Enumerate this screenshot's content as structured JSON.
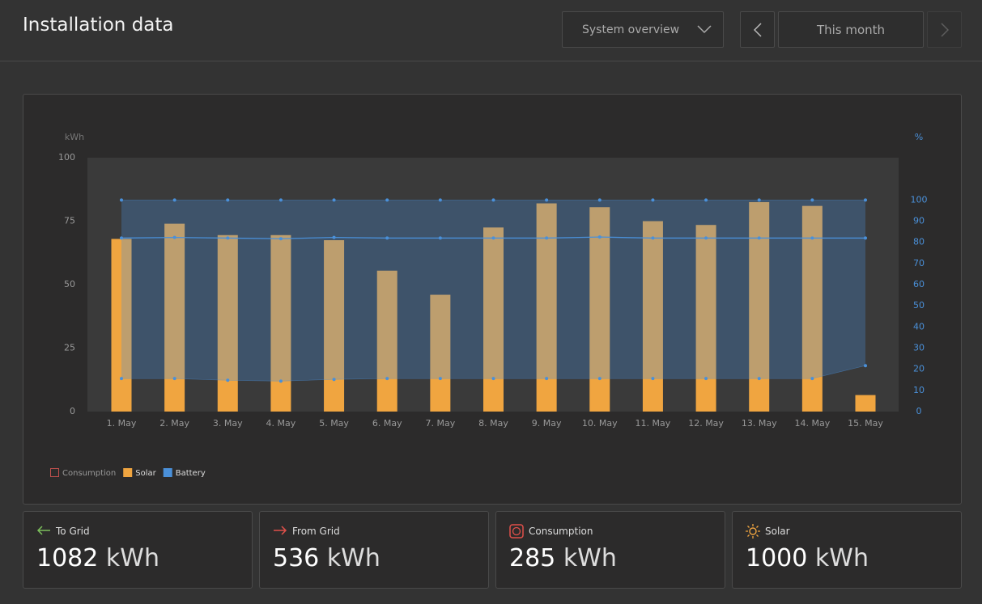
{
  "header": {
    "title": "Installation data",
    "view_select": "System overview",
    "period": "This month"
  },
  "chart_data": {
    "type": "bar",
    "y_label": "kWh",
    "y2_label": "%",
    "categories": [
      "1. May",
      "2. May",
      "3. May",
      "4. May",
      "5. May",
      "6. May",
      "7. May",
      "8. May",
      "9. May",
      "10. May",
      "11. May",
      "12. May",
      "13. May",
      "14. May",
      "15. May"
    ],
    "series": [
      {
        "name": "Consumption",
        "color": "#c0504d",
        "visible": false,
        "values": [
          null,
          null,
          null,
          null,
          null,
          null,
          null,
          null,
          null,
          null,
          null,
          null,
          null,
          null,
          null
        ]
      },
      {
        "name": "Solar",
        "color": "#f0a540",
        "values": [
          68,
          74,
          69.5,
          69.5,
          67.5,
          55.5,
          46,
          72.5,
          82,
          80.5,
          75,
          73.5,
          82.5,
          81,
          6.5
        ]
      },
      {
        "name": "Battery",
        "color": "#4a90d9",
        "axis": "y2",
        "values": [
          82,
          82.3,
          82,
          81.7,
          82.3,
          82,
          82,
          82,
          82,
          82.5,
          82,
          82,
          82,
          82,
          82
        ],
        "max": [
          100,
          100,
          100,
          100,
          100,
          100,
          100,
          100,
          100,
          100,
          100,
          100,
          100,
          100,
          100
        ],
        "min": [
          15.6,
          15.6,
          14.8,
          14.4,
          15.2,
          15.6,
          15.6,
          15.6,
          15.6,
          15.6,
          15.6,
          15.6,
          15.6,
          15.6,
          21.7
        ]
      }
    ],
    "ylim": [
      0,
      100
    ],
    "yticks": [
      0,
      25,
      50,
      75,
      100
    ],
    "y2lim": [
      0,
      120
    ],
    "y2ticks": [
      0,
      10,
      20,
      30,
      40,
      50,
      60,
      70,
      80,
      90,
      100
    ]
  },
  "cards": [
    {
      "label": "To Grid",
      "value": 1082,
      "unit": "kWh"
    },
    {
      "label": "From Grid",
      "value": 536,
      "unit": "kWh"
    },
    {
      "label": "Consumption",
      "value": 285,
      "unit": "kWh"
    },
    {
      "label": "Solar",
      "value": 1000,
      "unit": "kWh"
    }
  ]
}
